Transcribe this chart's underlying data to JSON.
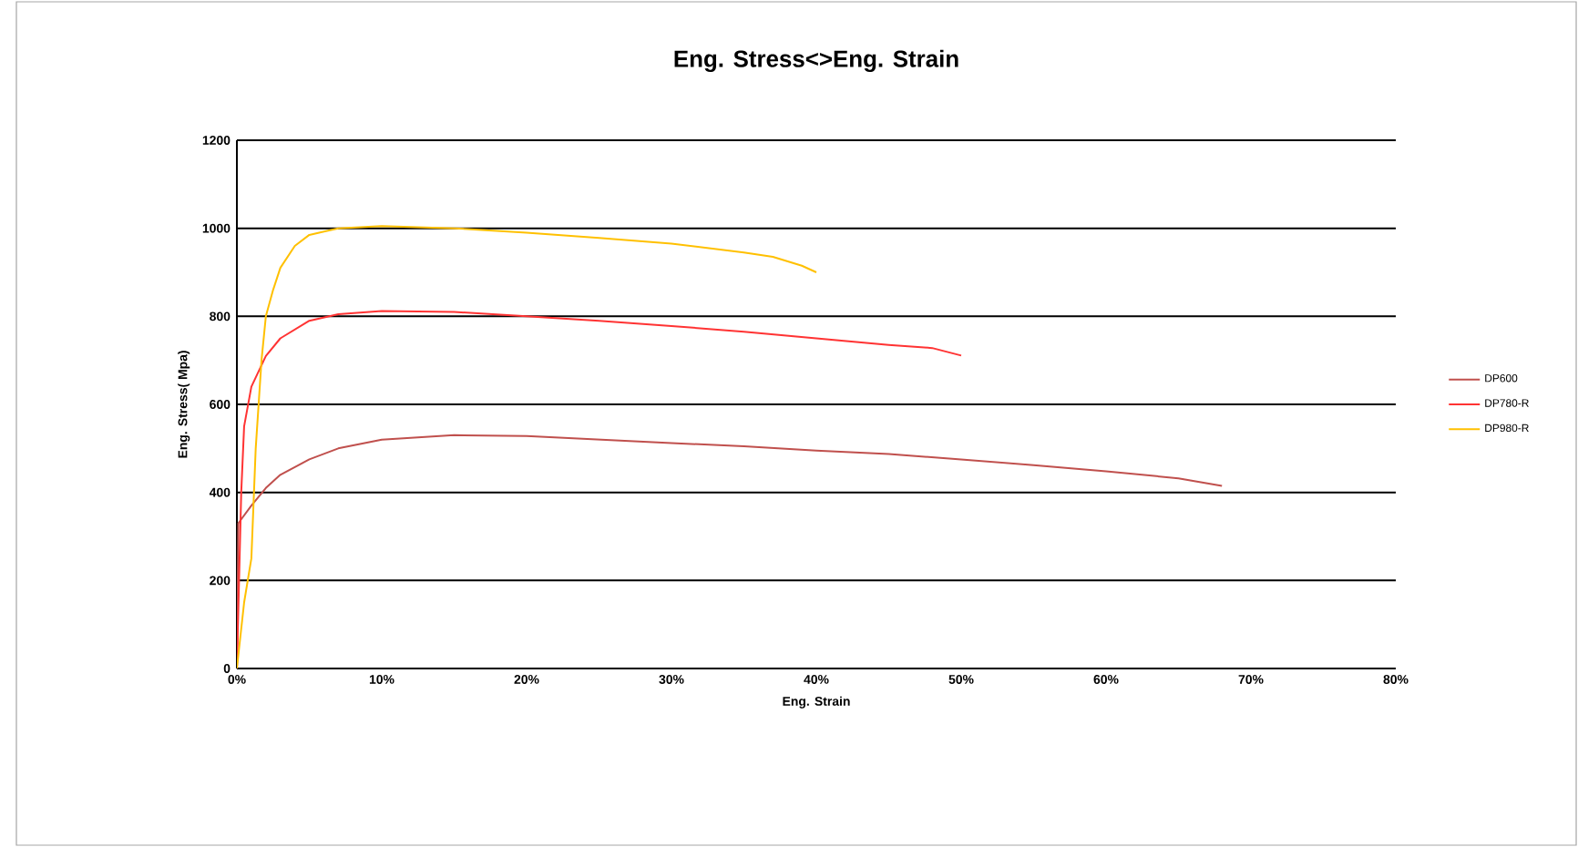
{
  "chart_data": {
    "type": "line",
    "title": "Eng. Stress<>Eng. Strain",
    "xlabel": "Eng. Strain",
    "ylabel": "Eng. Stress( Mpa)",
    "xlim": [
      0,
      80
    ],
    "ylim": [
      0,
      1200
    ],
    "xticks": [
      {
        "value": 0,
        "label": "0%"
      },
      {
        "value": 10,
        "label": "10%"
      },
      {
        "value": 20,
        "label": "20%"
      },
      {
        "value": 30,
        "label": "30%"
      },
      {
        "value": 40,
        "label": "40%"
      },
      {
        "value": 50,
        "label": "50%"
      },
      {
        "value": 60,
        "label": "60%"
      },
      {
        "value": 70,
        "label": "70%"
      },
      {
        "value": 80,
        "label": "80%"
      }
    ],
    "yticks": [
      0,
      200,
      400,
      600,
      800,
      1000,
      1200
    ],
    "grid": "y",
    "legend": "right",
    "marker": "none",
    "line_style": "solid",
    "series": [
      {
        "name": "DP600",
        "color": "#c0504d",
        "x": [
          0,
          0.1,
          1,
          2,
          3,
          5,
          7,
          10,
          15,
          20,
          25,
          30,
          35,
          40,
          45,
          50,
          55,
          60,
          65,
          68
        ],
        "values": [
          0,
          330,
          370,
          410,
          440,
          475,
          500,
          520,
          530,
          528,
          520,
          512,
          505,
          495,
          487,
          475,
          462,
          448,
          432,
          415
        ]
      },
      {
        "name": "DP780-R",
        "color": "#ff3333",
        "x": [
          0,
          0.3,
          0.5,
          1,
          2,
          3,
          5,
          7,
          10,
          15,
          20,
          25,
          30,
          35,
          40,
          45,
          48,
          50
        ],
        "values": [
          0,
          400,
          550,
          640,
          710,
          750,
          790,
          805,
          812,
          810,
          800,
          790,
          778,
          765,
          750,
          735,
          728,
          711
        ]
      },
      {
        "name": "DP980-R",
        "color": "#ffc000",
        "x": [
          0,
          0.5,
          1,
          1.3,
          1.7,
          2,
          2.5,
          3,
          4,
          5,
          7,
          10,
          15,
          20,
          25,
          30,
          35,
          37,
          39,
          40
        ],
        "values": [
          0,
          150,
          250,
          500,
          700,
          800,
          860,
          910,
          960,
          985,
          1000,
          1005,
          1000,
          990,
          978,
          965,
          945,
          935,
          915,
          900
        ]
      }
    ]
  }
}
